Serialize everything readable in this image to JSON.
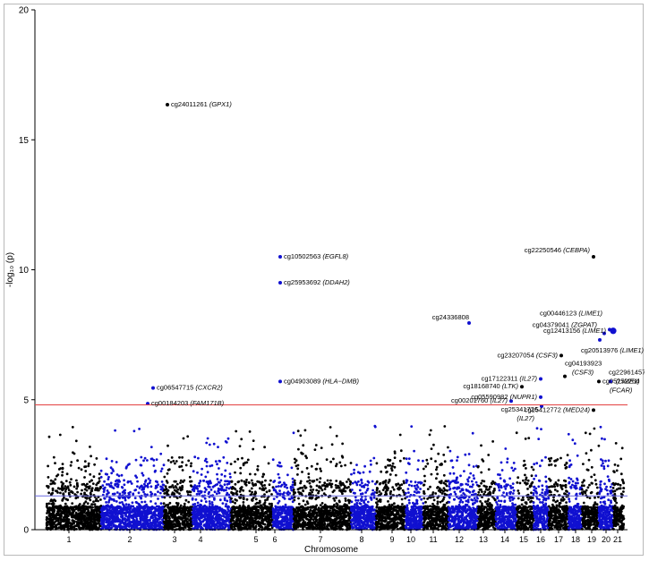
{
  "chart_data": {
    "type": "scatter",
    "title": "",
    "xlabel": "Chromosome",
    "ylabel": "-log₁₀ (p)",
    "ylim": [
      0,
      20
    ],
    "yticks": [
      0,
      5,
      10,
      15,
      20
    ],
    "chromosomes": [
      "1",
      "2",
      "3",
      "4",
      "5",
      "6",
      "7",
      "8",
      "9",
      "10",
      "11",
      "12",
      "13",
      "14",
      "15",
      "16",
      "17",
      "18",
      "19",
      "20",
      "21"
    ],
    "chromosome_colors": [
      "#000000",
      "#1010d0"
    ],
    "thresholds": [
      {
        "value": 4.8,
        "color": "#e34040"
      },
      {
        "value": 1.3,
        "color": "#6a6ae0"
      }
    ],
    "annotated_points": [
      {
        "chr": "3",
        "y": 16.35,
        "probe": "cg24011261",
        "gene": "GPX1"
      },
      {
        "chr": "6",
        "y": 10.5,
        "probe": "cg10502563",
        "gene": "EGFL8"
      },
      {
        "chr": "6",
        "y": 9.5,
        "probe": "cg25953692",
        "gene": "DDAH2"
      },
      {
        "chr": "6",
        "y": 5.7,
        "probe": "cg04903089",
        "gene": "HLA−DMB"
      },
      {
        "chr": "2",
        "y": 5.45,
        "probe": "cg06547715",
        "gene": "CXCR2"
      },
      {
        "chr": "2",
        "y": 4.85,
        "probe": "cg00184203",
        "gene": "FAM171B"
      },
      {
        "chr": "12",
        "y": 7.95,
        "probe": "cg24336808",
        "gene": ""
      },
      {
        "chr": "19",
        "y": 10.5,
        "probe": "cg22250546",
        "gene": "CEBPA"
      },
      {
        "chr": "20",
        "y": 7.7,
        "probe": "cg00446123",
        "gene": "LIME1"
      },
      {
        "chr": "20",
        "y": 7.55,
        "probe": "cg04379041",
        "gene": "ZGPAT"
      },
      {
        "chr": "20",
        "y": 7.65,
        "probe": "cg12413156",
        "gene": "LIME1"
      },
      {
        "chr": "20",
        "y": 7.3,
        "probe": "cg20513976",
        "gene": "LIME1"
      },
      {
        "chr": "17",
        "y": 6.7,
        "probe": "cg23207054",
        "gene": "CSF3"
      },
      {
        "chr": "17",
        "y": 5.9,
        "probe": "cg04193923",
        "gene": "CSF3"
      },
      {
        "chr": "16",
        "y": 5.8,
        "probe": "cg17122311",
        "gene": "IL27"
      },
      {
        "chr": "15",
        "y": 5.5,
        "probe": "cg18168740",
        "gene": "LTK"
      },
      {
        "chr": "16",
        "y": 5.1,
        "probe": "cg05590982",
        "gene": "NUPR1"
      },
      {
        "chr": "14",
        "y": 4.95,
        "probe": "cg00201760",
        "gene": "IL27"
      },
      {
        "chr": "19",
        "y": 5.7,
        "probe": "cg05252264",
        "gene": "FCAR"
      },
      {
        "chr": "20",
        "y": 5.7,
        "probe": "cg22961457",
        "gene": "LIME1"
      },
      {
        "chr": "19",
        "y": 4.6,
        "probe": "cg15412772",
        "gene": "MED24"
      },
      {
        "chr": "16",
        "y": 4.75,
        "probe": "cg25341726",
        "gene": "IL27"
      }
    ]
  }
}
